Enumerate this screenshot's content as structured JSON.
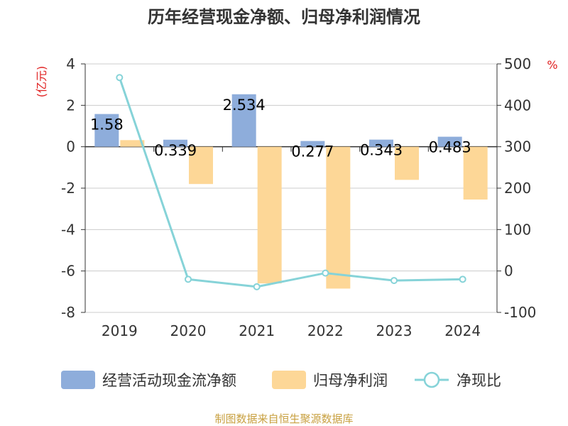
{
  "chart_data": {
    "type": "bar+line",
    "title": "历年经营现金净额、归母净利润情况",
    "categories": [
      "2019",
      "2020",
      "2021",
      "2022",
      "2023",
      "2024"
    ],
    "series": [
      {
        "name": "经营活动现金流净额",
        "kind": "bar",
        "axis": "left",
        "values": [
          1.58,
          0.339,
          2.534,
          0.277,
          0.343,
          0.483
        ],
        "labels": [
          "1.58",
          "0.339",
          "2.534",
          "0.277",
          "0.343",
          "0.483"
        ]
      },
      {
        "name": "归母净利润",
        "kind": "bar",
        "axis": "left",
        "values": [
          0.32,
          -1.8,
          -6.6,
          -6.85,
          -1.6,
          -2.55
        ]
      },
      {
        "name": "净现比",
        "kind": "line",
        "axis": "right",
        "values": [
          467,
          -20,
          -38,
          -5,
          -23,
          -20
        ]
      }
    ],
    "y_left": {
      "unit": "(亿元)",
      "min": -8,
      "max": 4,
      "ticks": [
        4,
        2,
        0,
        -2,
        -4,
        -6,
        -8
      ]
    },
    "y_right": {
      "unit": "%",
      "min": -100,
      "max": 500,
      "ticks": [
        500,
        400,
        300,
        200,
        100,
        0,
        -100
      ]
    },
    "grid": true,
    "legend_position": "bottom",
    "colors": {
      "cash": "#8eaddb",
      "profit": "#fdd797",
      "ratio": "#86d3d8",
      "unit_left": "#e02020",
      "unit_right": "#e02020",
      "source": "#c8a040"
    }
  },
  "source": "制图数据来自恒生聚源数据库"
}
